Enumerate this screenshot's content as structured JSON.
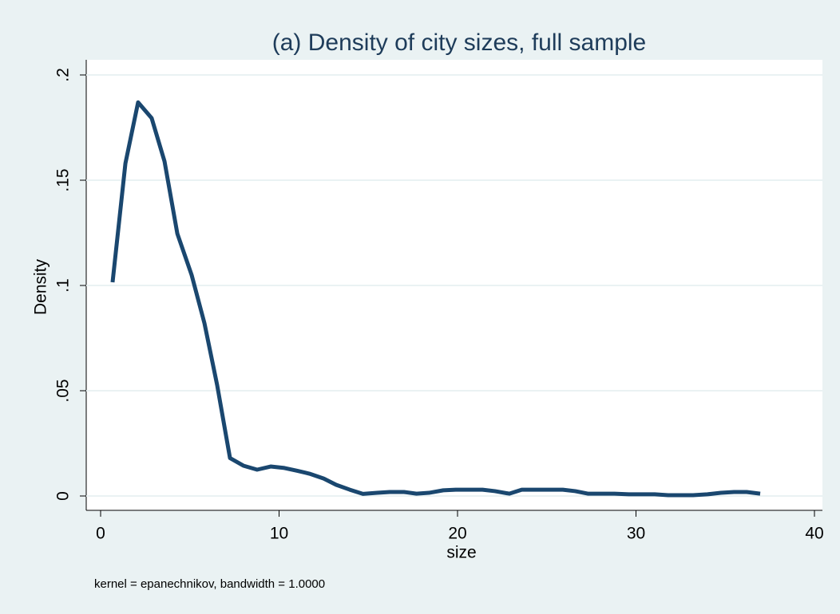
{
  "chart_data": {
    "type": "line",
    "title": "(a) Density of city sizes, full sample",
    "xlabel": "size",
    "ylabel": "Density",
    "note": "kernel = epanechnikov, bandwidth = 1.0000",
    "x": [
      0.67,
      1.39,
      2.1,
      2.86,
      3.58,
      4.3,
      5.1,
      5.82,
      6.53,
      7.25,
      8.0,
      8.77,
      9.53,
      10.3,
      11.0,
      11.7,
      12.5,
      13.2,
      13.96,
      14.7,
      15.5,
      16.2,
      17.0,
      17.7,
      18.4,
      19.2,
      19.9,
      20.7,
      21.4,
      22.1,
      22.9,
      23.6,
      24.4,
      25.1,
      25.9,
      26.6,
      27.3,
      28.05,
      28.8,
      29.6,
      30.3,
      31.05,
      31.8,
      32.5,
      33.2,
      34.0,
      34.76,
      35.5,
      36.2,
      36.96
    ],
    "series": [
      {
        "name": "Density",
        "color": "#1a476f",
        "values": [
          0.1015,
          0.158,
          0.187,
          0.1795,
          0.159,
          0.1246,
          0.105,
          0.082,
          0.0527,
          0.018,
          0.0144,
          0.0125,
          0.014,
          0.0133,
          0.012,
          0.0106,
          0.0083,
          0.0053,
          0.003,
          0.001,
          0.0015,
          0.0019,
          0.0019,
          0.0011,
          0.0015,
          0.0027,
          0.003,
          0.003,
          0.003,
          0.0023,
          0.0011,
          0.003,
          0.003,
          0.003,
          0.003,
          0.0023,
          0.0011,
          0.0011,
          0.0011,
          0.0008,
          0.0008,
          0.0008,
          0.0004,
          0.0004,
          0.0004,
          0.0008,
          0.0015,
          0.0019,
          0.0019,
          0.0011
        ]
      }
    ],
    "xlim": [
      0,
      40
    ],
    "xticks": [
      0,
      10,
      20,
      30,
      40
    ],
    "ylim": [
      0,
      0.2
    ],
    "yticks": [
      0,
      {
        "value": 0.05,
        "label": ".05"
      },
      {
        "value": 0.1,
        "label": ".1"
      },
      {
        "value": 0.15,
        "label": ".15"
      },
      {
        "value": 0.2,
        "label": ".2"
      }
    ],
    "grid": true
  }
}
